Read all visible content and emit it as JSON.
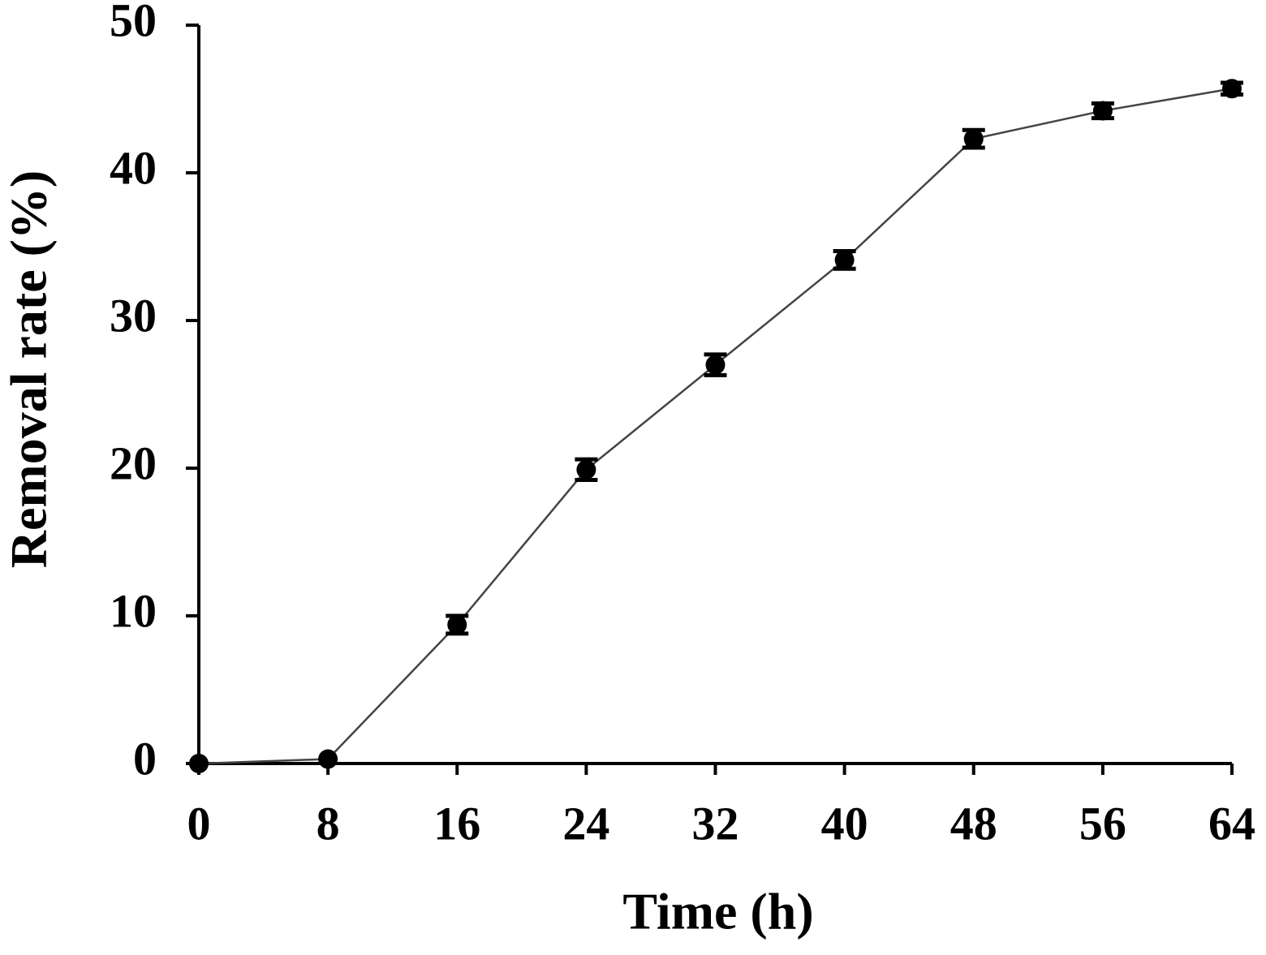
{
  "chart_data": {
    "type": "line",
    "x_label": "Time (h)",
    "y_label": "Removal rate (%)",
    "x": [
      0,
      8,
      16,
      24,
      32,
      40,
      48,
      56,
      64
    ],
    "series": [
      {
        "name": "Removal rate",
        "color": "#000000",
        "values": [
          0,
          0.3,
          9.4,
          19.9,
          27.0,
          34.1,
          42.3,
          44.2,
          45.7
        ],
        "errors": [
          0,
          0,
          0.6,
          0.7,
          0.7,
          0.6,
          0.6,
          0.5,
          0.4
        ]
      }
    ],
    "xlim": [
      0,
      64
    ],
    "xticks": [
      0,
      8,
      16,
      24,
      32,
      40,
      48,
      56,
      64
    ],
    "ylim": [
      0,
      50
    ],
    "yticks": [
      0,
      10,
      20,
      30,
      40,
      50
    ],
    "grid": false
  }
}
